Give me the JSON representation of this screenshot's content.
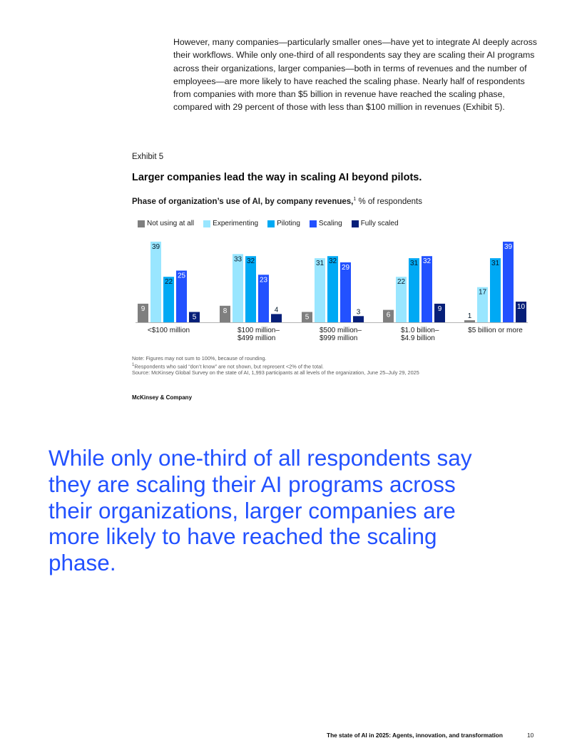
{
  "intro_paragraph": "However, many companies—particularly smaller ones—have yet to integrate AI deeply across their workflows. While only one-third of all respondents say they are scaling their AI programs across their organizations, larger companies—both in terms of revenues and the number of employees—are more likely to have reached the scaling phase. Nearly half of respondents from companies with more than $5 billion in revenue have reached the scaling phase, compared with 29 percent of those with less than $100 million in revenues (Exhibit 5).",
  "exhibit": {
    "label": "Exhibit 5",
    "title": "Larger companies lead the way in scaling AI beyond pilots.",
    "subtitle_bold": "Phase of organization’s use of AI, by company revenues,",
    "subtitle_sup": "1",
    "subtitle_rest": " % of respondents"
  },
  "chart_data": {
    "type": "bar",
    "title": "Phase of organization’s use of AI, by company revenues, % of respondents",
    "categories": [
      [
        "<$100 million"
      ],
      [
        "$100 million–",
        "$499 million"
      ],
      [
        "$500 million–",
        "$999 million"
      ],
      [
        "$1.0 billion–",
        "$4.9 billion"
      ],
      [
        "$5 billion or more"
      ]
    ],
    "series": [
      {
        "name": "Not using at all",
        "color": "#7f7f7f",
        "label_color": "#ffffff",
        "values": [
          9,
          8,
          5,
          6,
          1
        ]
      },
      {
        "name": "Experimenting",
        "color": "#99e6ff",
        "label_color": "#051c2c",
        "values": [
          39,
          33,
          31,
          22,
          17
        ]
      },
      {
        "name": "Piloting",
        "color": "#00a9f4",
        "label_color": "#051c2c",
        "values": [
          22,
          32,
          32,
          31,
          31
        ]
      },
      {
        "name": "Scaling",
        "color": "#2251ff",
        "label_color": "#ffffff",
        "values": [
          25,
          23,
          29,
          32,
          39
        ]
      },
      {
        "name": "Fully scaled",
        "color": "#061f79",
        "label_color": "#ffffff",
        "values": [
          5,
          4,
          3,
          9,
          10
        ]
      }
    ],
    "legend_position": "top-left",
    "grid": false,
    "ylim": [
      0,
      40
    ]
  },
  "notes": {
    "note": "Note: Figures may not sum to 100%, because of rounding.",
    "footnote_marker": "1",
    "footnote": "Respondents who said “don’t know” are not shown, but represent <2% of the total.",
    "source": "Source: McKinsey Global Survey on the state of AI, 1,993 participants at all levels of the organization, June 25–July 29, 2025"
  },
  "brand": "McKinsey & Company",
  "pull_quote": "While only one-third of all respondents say they are scaling their AI programs across their organizations, larger companies are more likely to have reached the scaling phase.",
  "footer": {
    "title": "The state of AI in 2025: Agents, innovation, and transformation",
    "page_number": "10"
  }
}
